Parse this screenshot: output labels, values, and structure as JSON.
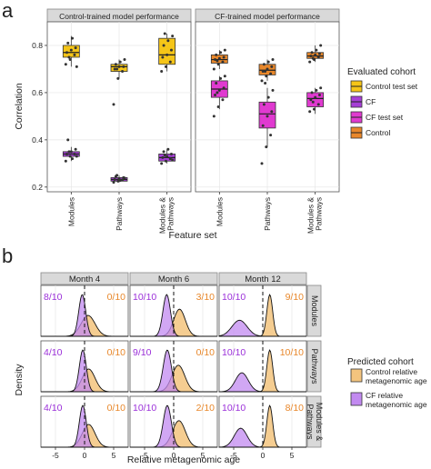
{
  "chart_data": [
    {
      "type": "boxplot",
      "panel_label": "a",
      "facets": [
        "Control-trained model performance",
        "CF-trained model performance"
      ],
      "categories": [
        "Modules",
        "Pathways",
        "Modules & Pathways"
      ],
      "xlabel": "Feature set",
      "ylabel": "Correlation",
      "ylim": [
        0.18,
        0.9
      ],
      "yticks": [
        0.2,
        0.4,
        0.6,
        0.8
      ],
      "legend_title": "Evaluated cohort",
      "legend": [
        {
          "name": "Control test set",
          "color": "#f5c518"
        },
        {
          "name": "CF",
          "color": "#a63fd6"
        },
        {
          "name": "CF test set",
          "color": "#e03ad0"
        },
        {
          "name": "Control",
          "color": "#e8872a"
        }
      ],
      "boxes": [
        {
          "facet": 0,
          "category": 0,
          "series": "Control test set",
          "q1": 0.75,
          "median": 0.77,
          "q3": 0.8,
          "lo": 0.71,
          "hi": 0.84,
          "points": [
            0.72,
            0.74,
            0.76,
            0.77,
            0.78,
            0.79,
            0.81,
            0.83,
            0.71,
            0.75
          ]
        },
        {
          "facet": 0,
          "category": 0,
          "series": "CF",
          "q1": 0.33,
          "median": 0.34,
          "q3": 0.35,
          "lo": 0.31,
          "hi": 0.37,
          "points": [
            0.31,
            0.33,
            0.34,
            0.34,
            0.35,
            0.36,
            0.4,
            0.32,
            0.33,
            0.35
          ]
        },
        {
          "facet": 0,
          "category": 1,
          "series": "Control test set",
          "q1": 0.69,
          "median": 0.71,
          "q3": 0.72,
          "lo": 0.66,
          "hi": 0.74,
          "points": [
            0.55,
            0.66,
            0.69,
            0.7,
            0.71,
            0.71,
            0.72,
            0.73,
            0.74,
            0.7
          ]
        },
        {
          "facet": 0,
          "category": 1,
          "series": "CF",
          "q1": 0.225,
          "median": 0.232,
          "q3": 0.24,
          "lo": 0.22,
          "hi": 0.25,
          "points": [
            0.22,
            0.225,
            0.23,
            0.232,
            0.235,
            0.24,
            0.245,
            0.228,
            0.238,
            0.25
          ]
        },
        {
          "facet": 0,
          "category": 2,
          "series": "Control test set",
          "q1": 0.72,
          "median": 0.76,
          "q3": 0.83,
          "lo": 0.69,
          "hi": 0.85,
          "points": [
            0.69,
            0.71,
            0.73,
            0.75,
            0.76,
            0.78,
            0.8,
            0.82,
            0.84,
            0.85
          ]
        },
        {
          "facet": 0,
          "category": 2,
          "series": "CF",
          "q1": 0.31,
          "median": 0.325,
          "q3": 0.34,
          "lo": 0.3,
          "hi": 0.36,
          "points": [
            0.3,
            0.31,
            0.32,
            0.325,
            0.33,
            0.34,
            0.35,
            0.36,
            0.315,
            0.335
          ]
        },
        {
          "facet": 1,
          "category": 0,
          "series": "CF test set",
          "q1": 0.58,
          "median": 0.615,
          "q3": 0.65,
          "lo": 0.53,
          "hi": 0.67,
          "points": [
            0.5,
            0.54,
            0.57,
            0.59,
            0.61,
            0.62,
            0.64,
            0.66,
            0.67,
            0.6
          ]
        },
        {
          "facet": 1,
          "category": 0,
          "series": "Control",
          "q1": 0.725,
          "median": 0.74,
          "q3": 0.76,
          "lo": 0.7,
          "hi": 0.78,
          "points": [
            0.7,
            0.72,
            0.73,
            0.74,
            0.745,
            0.75,
            0.76,
            0.77,
            0.78,
            0.735
          ]
        },
        {
          "facet": 1,
          "category": 1,
          "series": "CF test set",
          "q1": 0.45,
          "median": 0.51,
          "q3": 0.56,
          "lo": 0.37,
          "hi": 0.62,
          "points": [
            0.3,
            0.37,
            0.42,
            0.46,
            0.5,
            0.52,
            0.55,
            0.58,
            0.61,
            0.64
          ]
        },
        {
          "facet": 1,
          "category": 1,
          "series": "Control",
          "q1": 0.675,
          "median": 0.695,
          "q3": 0.72,
          "lo": 0.65,
          "hi": 0.74,
          "points": [
            0.65,
            0.67,
            0.68,
            0.69,
            0.7,
            0.71,
            0.72,
            0.73,
            0.74,
            0.69
          ]
        },
        {
          "facet": 1,
          "category": 2,
          "series": "CF test set",
          "q1": 0.54,
          "median": 0.575,
          "q3": 0.6,
          "lo": 0.51,
          "hi": 0.62,
          "points": [
            0.52,
            0.53,
            0.55,
            0.57,
            0.58,
            0.59,
            0.6,
            0.61,
            0.62,
            0.56
          ]
        },
        {
          "facet": 1,
          "category": 2,
          "series": "Control",
          "q1": 0.745,
          "median": 0.755,
          "q3": 0.77,
          "lo": 0.73,
          "hi": 0.8,
          "points": [
            0.73,
            0.74,
            0.75,
            0.755,
            0.76,
            0.765,
            0.77,
            0.78,
            0.8,
            0.745
          ]
        }
      ]
    },
    {
      "type": "density",
      "panel_label": "b",
      "columns": [
        "Month 4",
        "Month 6",
        "Month 12"
      ],
      "rows": [
        "Modules",
        "Pathways",
        "Modules & Pathways"
      ],
      "xlabel": "Relative metagenomic age",
      "ylabel": "Density",
      "xlim": [
        -7.5,
        7.5
      ],
      "xticks": [
        -5,
        0,
        5
      ],
      "vline": 0,
      "legend_title": "Predicted cohort",
      "legend": [
        {
          "name": "Control relative metagenomic age",
          "color": "#f3c47e"
        },
        {
          "name": "CF relative metagenomic age",
          "color": "#c28af0"
        }
      ],
      "cells": [
        {
          "row": 0,
          "col": 0,
          "cf_label": "8/10",
          "control_label": "0/10",
          "cf": {
            "mu": -0.4,
            "sd": 0.6
          },
          "control": {
            "mu": 0.6,
            "sd": 1.2
          }
        },
        {
          "row": 0,
          "col": 1,
          "cf_label": "10/10",
          "control_label": "3/10",
          "cf": {
            "mu": -1.2,
            "sd": 0.65
          },
          "control": {
            "mu": 1.0,
            "sd": 1.0
          }
        },
        {
          "row": 0,
          "col": 2,
          "cf_label": "10/10",
          "control_label": "9/10",
          "cf": {
            "mu": -4.0,
            "sd": 1.3
          },
          "control": {
            "mu": 1.2,
            "sd": 0.5
          }
        },
        {
          "row": 1,
          "col": 0,
          "cf_label": "4/10",
          "control_label": "0/10",
          "cf": {
            "mu": -0.3,
            "sd": 0.6
          },
          "control": {
            "mu": 0.7,
            "sd": 1.1
          }
        },
        {
          "row": 1,
          "col": 1,
          "cf_label": "9/10",
          "control_label": "0/10",
          "cf": {
            "mu": -1.1,
            "sd": 0.7
          },
          "control": {
            "mu": 0.8,
            "sd": 1.1
          }
        },
        {
          "row": 1,
          "col": 2,
          "cf_label": "10/10",
          "control_label": "10/10",
          "cf": {
            "mu": -3.6,
            "sd": 1.1
          },
          "control": {
            "mu": 1.2,
            "sd": 0.5
          }
        },
        {
          "row": 2,
          "col": 0,
          "cf_label": "4/10",
          "control_label": "0/10",
          "cf": {
            "mu": -0.3,
            "sd": 0.6
          },
          "control": {
            "mu": 0.7,
            "sd": 1.1
          }
        },
        {
          "row": 2,
          "col": 1,
          "cf_label": "10/10",
          "control_label": "2/10",
          "cf": {
            "mu": -1.1,
            "sd": 0.7
          },
          "control": {
            "mu": 0.9,
            "sd": 1.1
          }
        },
        {
          "row": 2,
          "col": 2,
          "cf_label": "10/10",
          "control_label": "8/10",
          "cf": {
            "mu": -3.8,
            "sd": 1.1
          },
          "control": {
            "mu": 1.2,
            "sd": 0.5
          }
        }
      ]
    }
  ]
}
